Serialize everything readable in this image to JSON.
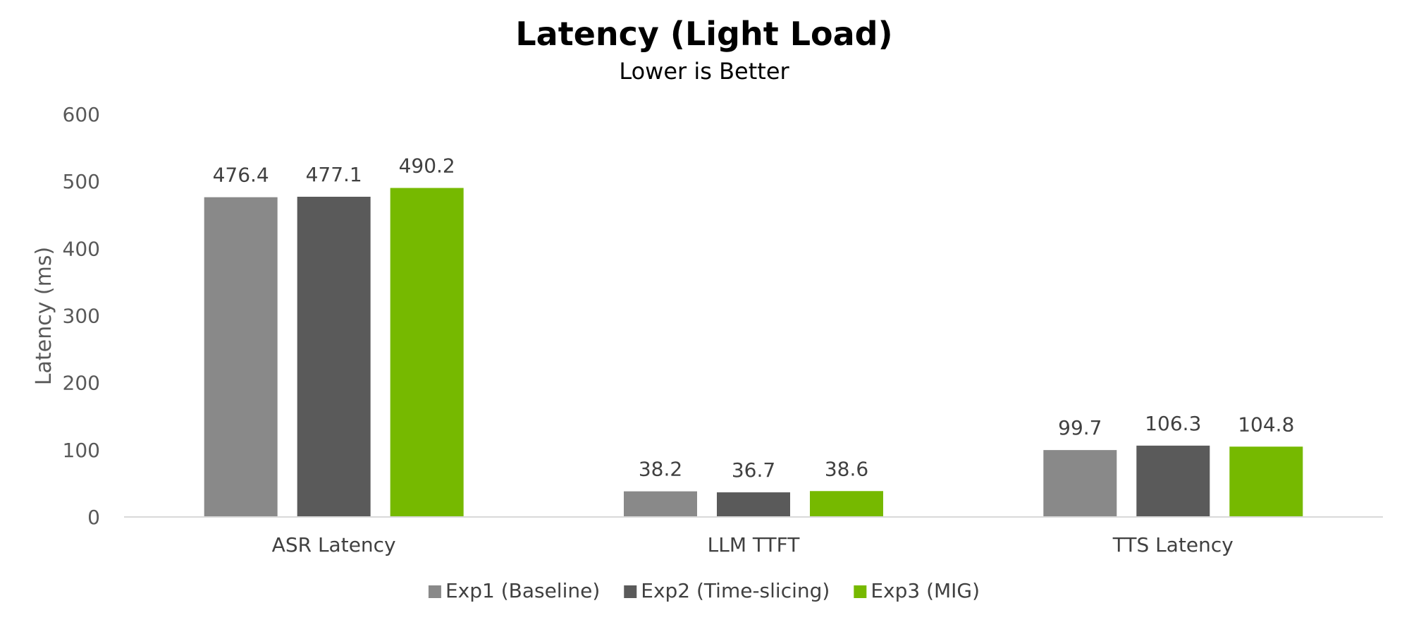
{
  "chart_data": {
    "type": "bar",
    "title": "Latency (Light Load)",
    "subtitle": "Lower is Better",
    "xlabel": "",
    "ylabel": "Latency (ms)",
    "ylim": [
      0,
      600
    ],
    "yticks": [
      0,
      100,
      200,
      300,
      400,
      500,
      600
    ],
    "grid": false,
    "legend_position": "bottom",
    "categories": [
      "ASR Latency",
      "LLM TTFT",
      "TTS Latency"
    ],
    "series": [
      {
        "name": "Exp1 (Baseline)",
        "color": "#898989",
        "values": [
          476.4,
          38.2,
          99.7
        ]
      },
      {
        "name": "Exp2 (Time-slicing)",
        "color": "#5a5a5a",
        "values": [
          477.1,
          36.7,
          106.3
        ]
      },
      {
        "name": "Exp3 (MIG)",
        "color": "#76b900",
        "values": [
          490.2,
          38.6,
          104.8
        ]
      }
    ]
  }
}
